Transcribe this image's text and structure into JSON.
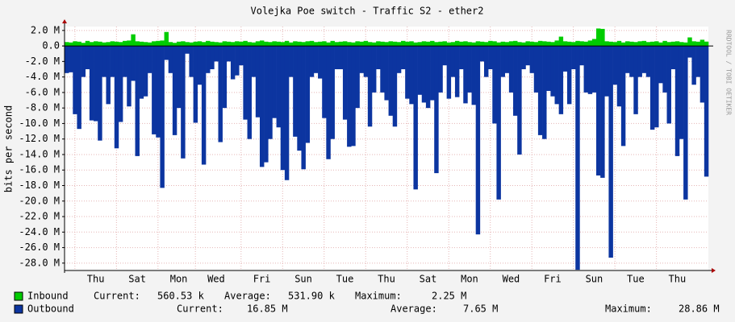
{
  "chart_data": {
    "type": "bar",
    "title": "Volejka Poe switch - Traffic S2 - ether2",
    "y_label": "bits per second",
    "watermark": "RRDTOOL / TOBI OETIKER",
    "categories": [
      null,
      null,
      null,
      null,
      null,
      null,
      null,
      "Thu",
      null,
      null,
      null,
      null,
      null,
      null,
      null,
      null,
      null,
      "Sat",
      null,
      null,
      null,
      null,
      null,
      null,
      null,
      null,
      null,
      "Mon",
      null,
      null,
      null,
      null,
      null,
      null,
      null,
      null,
      "Wed",
      null,
      null,
      null,
      null,
      null,
      null,
      null,
      null,
      null,
      null,
      "Fri",
      null,
      null,
      null,
      null,
      null,
      null,
      null,
      null,
      null,
      "Sun",
      null,
      null,
      null,
      null,
      null,
      null,
      null,
      null,
      null,
      "Tue",
      null,
      null,
      null,
      null,
      null,
      null,
      null,
      null,
      null,
      "Thu",
      null,
      null,
      null,
      null,
      null,
      null,
      null,
      null,
      null,
      "Sat",
      null,
      null,
      null,
      null,
      null,
      null,
      null,
      null,
      null,
      "Mon",
      null,
      null,
      null,
      null,
      null,
      null,
      null,
      null,
      null,
      "Wed",
      null,
      null,
      null,
      null,
      null,
      null,
      null,
      null,
      null,
      "Fri",
      null,
      null,
      null,
      null,
      null,
      null,
      null,
      null,
      null,
      "Sun",
      null,
      null,
      null,
      null,
      null,
      null,
      null,
      null,
      null,
      "Tue",
      null,
      null,
      null,
      null,
      null,
      null,
      null,
      null,
      null,
      "Thu",
      null,
      null,
      null,
      null,
      null,
      null,
      null
    ],
    "series": [
      {
        "name": "Inbound",
        "color": "#00cc00",
        "stats": [
          [
            "Current:",
            "560.53 k"
          ],
          [
            "Average:",
            "531.90 k"
          ],
          [
            "Maximum:",
            "2.25 M"
          ]
        ],
        "values": [
          500000,
          450000,
          600000,
          550000,
          400000,
          650000,
          500000,
          600000,
          550000,
          450000,
          500000,
          600000,
          550000,
          500000,
          650000,
          700000,
          1500000,
          600000,
          550000,
          500000,
          450000,
          600000,
          650000,
          700000,
          1800000,
          500000,
          400000,
          550000,
          600000,
          500000,
          450000,
          550000,
          600000,
          500000,
          650000,
          550000,
          500000,
          450000,
          600000,
          550000,
          500000,
          600000,
          550000,
          650000,
          500000,
          450000,
          600000,
          700000,
          550000,
          500000,
          600000,
          550000,
          500000,
          650000,
          450000,
          600000,
          550000,
          500000,
          600000,
          650000,
          500000,
          550000,
          600000,
          450000,
          650000,
          500000,
          550000,
          600000,
          500000,
          450000,
          600000,
          550000,
          650000,
          500000,
          450000,
          600000,
          550000,
          500000,
          600000,
          550000,
          500000,
          650000,
          550000,
          600000,
          450000,
          500000,
          600000,
          550000,
          650000,
          500000,
          550000,
          600000,
          450000,
          500000,
          650000,
          550000,
          600000,
          500000,
          450000,
          600000,
          550000,
          500000,
          650000,
          600000,
          450000,
          550000,
          500000,
          600000,
          650000,
          500000,
          450000,
          600000,
          550000,
          500000,
          650000,
          600000,
          550000,
          500000,
          700000,
          1200000,
          600000,
          550000,
          500000,
          650000,
          600000,
          550000,
          700000,
          900000,
          2250000,
          2200000,
          600000,
          550000,
          500000,
          650000,
          450000,
          600000,
          550000,
          500000,
          600000,
          650000,
          500000,
          550000,
          600000,
          450000,
          650000,
          500000,
          550000,
          600000,
          500000,
          450000,
          1100000,
          600000,
          550000,
          800000,
          560530
        ]
      },
      {
        "name": "Outbound",
        "color": "#0c35a0",
        "stats": [
          [
            "Current:",
            "16.85 M"
          ],
          [
            "Average:",
            "7.65 M"
          ],
          [
            "Maximum:",
            "28.86 M"
          ]
        ],
        "values": [
          -3500000,
          -3400000,
          -8800000,
          -10700000,
          -4000000,
          -3000000,
          -9600000,
          -9700000,
          -12200000,
          -4000000,
          -7500000,
          -4000000,
          -13200000,
          -9800000,
          -4000000,
          -7800000,
          -4500000,
          -14200000,
          -6800000,
          -6500000,
          -3500000,
          -11400000,
          -11800000,
          -18300000,
          -1800000,
          -3500000,
          -11500000,
          -8000000,
          -14500000,
          -1000000,
          -4000000,
          -9900000,
          -5000000,
          -15300000,
          -3500000,
          -3000000,
          -2000000,
          -12400000,
          -8000000,
          -2000000,
          -4300000,
          -3800000,
          -2500000,
          -9500000,
          -12000000,
          -4000000,
          -9200000,
          -15600000,
          -15000000,
          -12000000,
          -9300000,
          -10500000,
          -16000000,
          -17300000,
          -4000000,
          -11700000,
          -13500000,
          -15900000,
          -12500000,
          -4000000,
          -3500000,
          -4200000,
          -9300000,
          -14600000,
          -12000000,
          -3000000,
          -3000000,
          -9500000,
          -13000000,
          -12900000,
          -8000000,
          -3500000,
          -4000000,
          -10400000,
          -6000000,
          -3000000,
          -6000000,
          -7000000,
          -9000000,
          -10400000,
          -3500000,
          -3000000,
          -6800000,
          -7500000,
          -18500000,
          -6300000,
          -7300000,
          -8000000,
          -7000000,
          -16400000,
          -6000000,
          -2500000,
          -6800000,
          -4000000,
          -6600000,
          -3000000,
          -7400000,
          -6000000,
          -7600000,
          -24300000,
          -2000000,
          -4000000,
          -3000000,
          -10000000,
          -19800000,
          -4000000,
          -3500000,
          -6000000,
          -9000000,
          -14000000,
          -3000000,
          -2500000,
          -3500000,
          -6000000,
          -11500000,
          -12000000,
          -5800000,
          -6500000,
          -7500000,
          -8800000,
          -3300000,
          -7500000,
          -3000000,
          -28860000,
          -2500000,
          -6000000,
          -6200000,
          -6000000,
          -16700000,
          -17000000,
          -6500000,
          -27300000,
          -5000000,
          -7800000,
          -12900000,
          -3500000,
          -4000000,
          -8800000,
          -4000000,
          -3500000,
          -4000000,
          -10800000,
          -10500000,
          -4800000,
          -6000000,
          -10000000,
          -3000000,
          -14200000,
          -12000000,
          -19800000,
          -1500000,
          -5000000,
          -4000000,
          -7300000,
          -16850000
        ]
      }
    ],
    "ylim": [
      -28950000,
      2500000
    ],
    "yticks": [
      {
        "value": 2000000,
        "label": "2.0 M"
      },
      {
        "value": 0,
        "label": "0.0"
      },
      {
        "value": -2000000,
        "label": "-2.0 M"
      },
      {
        "value": -4000000,
        "label": "-4.0 M"
      },
      {
        "value": -6000000,
        "label": "-6.0 M"
      },
      {
        "value": -8000000,
        "label": "-8.0 M"
      },
      {
        "value": -10000000,
        "label": "-10.0 M"
      },
      {
        "value": -12000000,
        "label": "-12.0 M"
      },
      {
        "value": -14000000,
        "label": "-14.0 M"
      },
      {
        "value": -16000000,
        "label": "-16.0 M"
      },
      {
        "value": -18000000,
        "label": "-18.0 M"
      },
      {
        "value": -20000000,
        "label": "-20.0 M"
      },
      {
        "value": -22000000,
        "label": "-22.0 M"
      },
      {
        "value": -24000000,
        "label": "-24.0 M"
      },
      {
        "value": -26000000,
        "label": "-26.0 M"
      },
      {
        "value": -28000000,
        "label": "-28.0 M"
      }
    ],
    "grid": true
  }
}
